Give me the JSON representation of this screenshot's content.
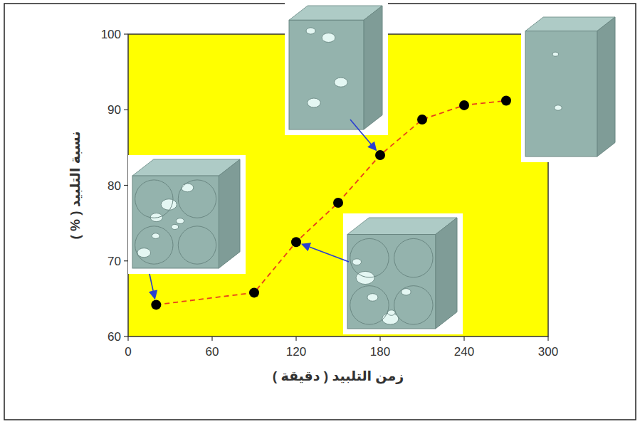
{
  "chart_data": {
    "type": "line",
    "x_label": "زمن التلبيد ( دقيقة )",
    "y_label": "نسبة التلبيد ( % )",
    "x": [
      20,
      90,
      120,
      150,
      180,
      210,
      240,
      270
    ],
    "values": [
      64.2,
      65.8,
      72.5,
      77.7,
      84,
      88.7,
      90.6,
      91.2
    ],
    "color": "#e8401c",
    "marker": "circle",
    "line_style": "dashed",
    "grid": false,
    "xlim": [
      0,
      300
    ],
    "xticks": [
      0,
      60,
      120,
      180,
      240,
      300
    ],
    "ylim": [
      60,
      100
    ],
    "yticks": [
      60,
      70,
      80,
      90,
      100
    ]
  }
}
